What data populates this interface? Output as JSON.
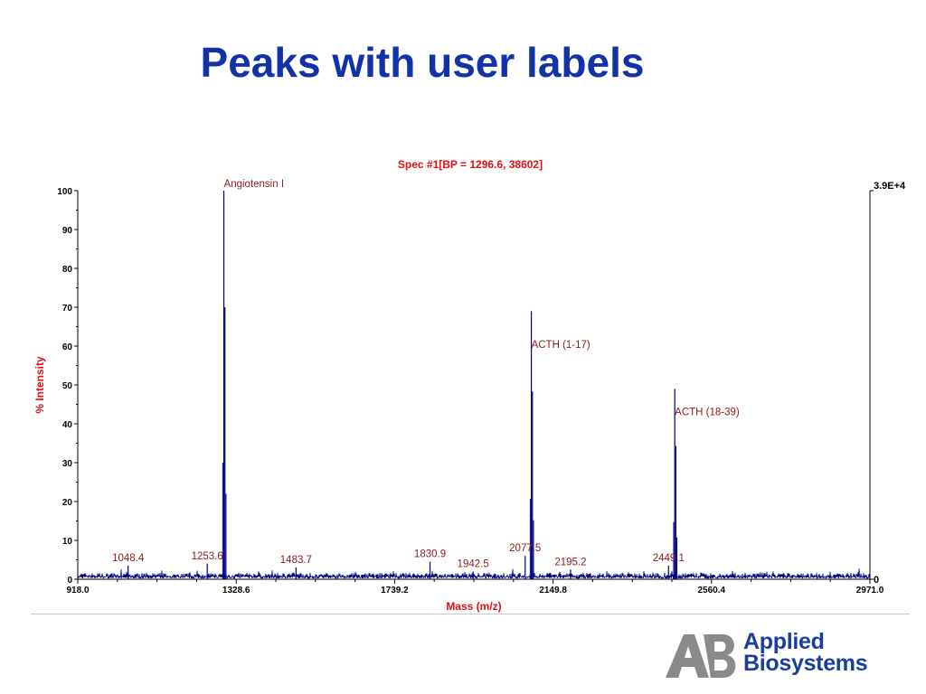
{
  "page": {
    "title": "Peaks with user labels"
  },
  "logo": {
    "mark_text": "AB",
    "name_line1": "Applied",
    "name_line2": "Biosystems",
    "color": "#1b3d9c",
    "mark_color": "#8a8a8a"
  },
  "chart_data": {
    "type": "line",
    "title": "Spec #1[BP = 1296.6, 38602]",
    "xlabel": "Mass (m/z)",
    "ylabel": "% Intensity",
    "xlim": [
      918.0,
      2971.0
    ],
    "ylim": [
      0,
      100
    ],
    "x_ticks": [
      "918.0",
      "1328.6",
      "1739.2",
      "2149.8",
      "2560.4",
      "2971.0"
    ],
    "y_ticks": [
      "0",
      "10",
      "20",
      "30",
      "40",
      "50",
      "60",
      "70",
      "80",
      "90",
      "100"
    ],
    "right_axis": {
      "top_label": "3.9E+4",
      "bottom_label": "0"
    },
    "grid": false,
    "colors": {
      "spectrum": "#000080",
      "title": "#e01010",
      "ylabel": "#e01010",
      "xlabel": "#e01010",
      "peak_label": "#8b1a1a",
      "axis": "#000000"
    },
    "peaks": [
      {
        "x": 1048.4,
        "y": 3.5,
        "label": "1048.4"
      },
      {
        "x": 1253.6,
        "y": 4,
        "label": "1253.6"
      },
      {
        "x": 1296.6,
        "y": 100,
        "label": "Angiotensin I"
      },
      {
        "x": 1483.7,
        "y": 3,
        "label": "1483.7"
      },
      {
        "x": 1830.9,
        "y": 4.5,
        "label": "1830.9"
      },
      {
        "x": 1942.5,
        "y": 2,
        "label": "1942.5"
      },
      {
        "x": 2077.5,
        "y": 6,
        "label": "2077.5"
      },
      {
        "x": 2093.5,
        "y": 69,
        "label": "ACTH (1-17)"
      },
      {
        "x": 2195.2,
        "y": 2.5,
        "label": "2195.2"
      },
      {
        "x": 2449.1,
        "y": 3.5,
        "label": "2449.1"
      },
      {
        "x": 2465.2,
        "y": 49,
        "label": "ACTH (18-39)"
      }
    ]
  }
}
